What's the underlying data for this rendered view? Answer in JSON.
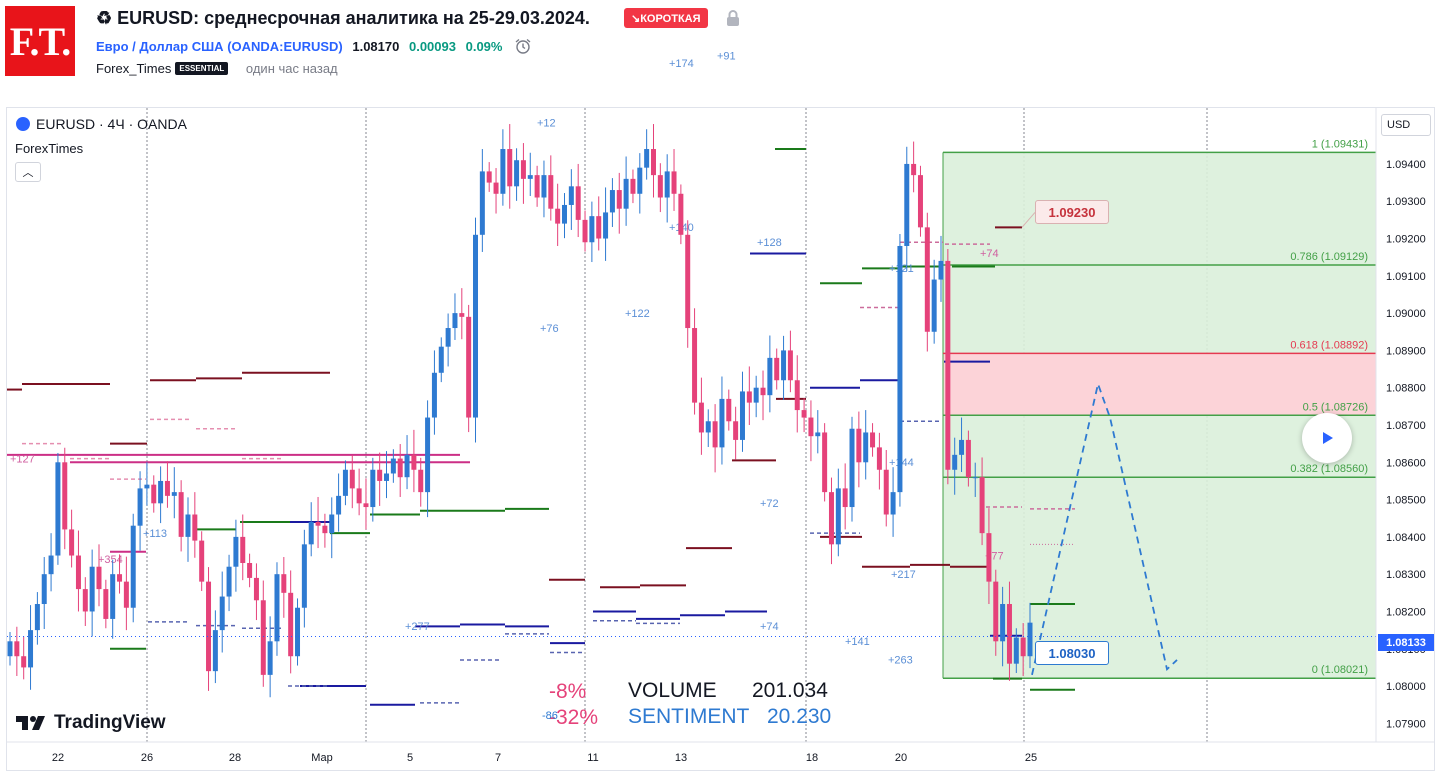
{
  "header": {
    "logo_text": "F.T.",
    "title": "♻ EURUSD: среднесрочная аналитика на 25-29.03.2024.",
    "badge": "↘КОРОТКАЯ",
    "symbol_name": "Евро / Доллар США",
    "symbol_ticker": "(OANDA:EURUSD)",
    "price": "1.08170",
    "change": "0.00093",
    "change_pct": "0.09%",
    "author": "Forex_Times",
    "author_badge": "ESSENTIAL",
    "time_ago": "один час назад"
  },
  "chart": {
    "legend": "EURUSD · 4Ч · OANDA",
    "indicator": "ForexTimes",
    "currency_button": "USD",
    "current_price_tag": "1.08133",
    "callout_high": "1.09230",
    "callout_low": "1.08030",
    "brand": "TradingView",
    "stats": {
      "pct1": "-8%",
      "pct2": "-32%",
      "volume_label": "VOLUME",
      "volume_value": "201.034",
      "sentiment_label": "SENTIMENT",
      "sentiment_value": "20.230",
      "small": "-86"
    },
    "colors": {
      "up": "#2e7ad1",
      "down": "#e5427a",
      "fib_green": "#43a047",
      "fib_red": "#e53950"
    }
  },
  "chart_data": {
    "type": "candlestick",
    "symbol": "EURUSD",
    "interval": "4Ч",
    "y_range": [
      1.0785,
      1.0955
    ],
    "y_ticks": [
      "1.09400",
      "1.09300",
      "1.09200",
      "1.09100",
      "1.09000",
      "1.08900",
      "1.08800",
      "1.08700",
      "1.08600",
      "1.08500",
      "1.08400",
      "1.08300",
      "1.08200",
      "1.08100",
      "1.08000",
      "1.07900"
    ],
    "x_ticks": [
      "22",
      "26",
      "28",
      "Мар",
      "5",
      "7",
      "11",
      "13",
      "18",
      "20",
      "25"
    ],
    "fibonacci": [
      {
        "level": "1",
        "price": 1.09431,
        "label": "1 (1.09431)"
      },
      {
        "level": "0.786",
        "price": 1.09129,
        "label": "0.786 (1.09129)"
      },
      {
        "level": "0.618",
        "price": 1.08892,
        "label": "0.618 (1.08892)"
      },
      {
        "level": "0.5",
        "price": 1.08726,
        "label": "0.5 (1.08726)"
      },
      {
        "level": "0.382",
        "price": 1.0856,
        "label": "0.382 (1.08560)"
      },
      {
        "level": "0",
        "price": 1.08021,
        "label": "0 (1.08021)"
      }
    ],
    "level_annotations": [
      "+127",
      "+354",
      "+113",
      "+277",
      "+76",
      "+12",
      "+174",
      "+91",
      "+140",
      "+122",
      "+128",
      "+72",
      "+74",
      "+121",
      "+74",
      "+144",
      "+141",
      "+263",
      "+217",
      "+77"
    ],
    "closes": [
      1.0812,
      1.0808,
      1.0805,
      1.0815,
      1.0822,
      1.083,
      1.0835,
      1.086,
      1.0842,
      1.0835,
      1.0826,
      1.082,
      1.0832,
      1.0826,
      1.0818,
      1.083,
      1.0828,
      1.0821,
      1.0843,
      1.0853,
      1.0854,
      1.0849,
      1.0855,
      1.0851,
      1.0852,
      1.084,
      1.0846,
      1.0839,
      1.0828,
      1.0804,
      1.0815,
      1.0824,
      1.0832,
      1.084,
      1.0833,
      1.0829,
      1.0823,
      1.0803,
      1.0812,
      1.083,
      1.0825,
      1.0808,
      1.0821,
      1.0838,
      1.0844,
      1.0843,
      1.0841,
      1.0846,
      1.0851,
      1.0858,
      1.0853,
      1.0849,
      1.0848,
      1.0858,
      1.0855,
      1.0857,
      1.0861,
      1.0856,
      1.0862,
      1.0858,
      1.0852,
      1.0872,
      1.0884,
      1.0891,
      1.0896,
      1.09,
      1.0899,
      1.0872,
      1.0921,
      1.0938,
      1.0935,
      1.0932,
      1.0944,
      1.0934,
      1.0941,
      1.0936,
      1.0937,
      1.0931,
      1.0937,
      1.0928,
      1.0924,
      1.0929,
      1.0934,
      1.0925,
      1.0919,
      1.0926,
      1.092,
      1.0927,
      1.0933,
      1.0928,
      1.0936,
      1.0932,
      1.0939,
      1.0944,
      1.0937,
      1.0931,
      1.0938,
      1.0932,
      1.0921,
      1.0896,
      1.0876,
      1.0868,
      1.0871,
      1.0864,
      1.0877,
      1.0871,
      1.0866,
      1.0879,
      1.0876,
      1.088,
      1.0878,
      1.0888,
      1.0882,
      1.089,
      1.0882,
      1.0874,
      1.0872,
      1.0867,
      1.0868,
      1.0852,
      1.0838,
      1.0853,
      1.0848,
      1.0869,
      1.086,
      1.0868,
      1.0864,
      1.0858,
      1.0846,
      1.0852,
      1.0918,
      1.094,
      1.0937,
      1.0923,
      1.0895,
      1.0909,
      1.0914,
      1.0858,
      1.0862,
      1.0866,
      1.0856,
      1.0856,
      1.0841,
      1.0828,
      1.0812,
      1.0822,
      1.0806,
      1.0813,
      1.0808,
      1.0817
    ]
  }
}
